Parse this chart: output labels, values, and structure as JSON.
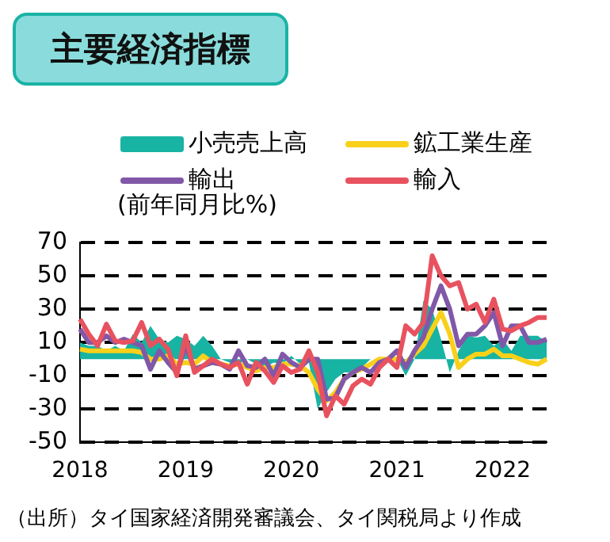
{
  "chart_data": {
    "type": "line",
    "title": "主要経済指標",
    "ylabel": "(前年同月比%)",
    "legend": "top",
    "grid": "y",
    "categories": [
      "2018",
      null,
      null,
      null,
      null,
      null,
      null,
      null,
      null,
      null,
      null,
      null,
      "2019",
      null,
      null,
      null,
      null,
      null,
      null,
      null,
      null,
      null,
      null,
      null,
      "2020",
      null,
      null,
      null,
      null,
      null,
      null,
      null,
      null,
      null,
      null,
      null,
      "2021",
      null,
      null,
      null,
      null,
      null,
      null,
      null,
      null,
      null,
      null,
      null,
      "2022",
      null,
      null,
      null,
      null,
      null
    ],
    "ylim": [
      -50,
      70
    ],
    "yticks": [
      -50,
      -30,
      -10,
      10,
      30,
      50,
      70
    ],
    "series": [
      {
        "name": "小売売上高",
        "type": "area",
        "color": "#17b3a3",
        "values": [
          10,
          8,
          8,
          5,
          8,
          5,
          15,
          10,
          20,
          12,
          10,
          14,
          12,
          8,
          14,
          8,
          0,
          -2,
          -3,
          0,
          -3,
          -5,
          -2,
          -3,
          2,
          -3,
          -2,
          -30,
          -20,
          -12,
          -8,
          -8,
          -5,
          0,
          0,
          0,
          0,
          -10,
          0,
          35,
          30,
          12,
          -8,
          5,
          14,
          13,
          14,
          8,
          12,
          5,
          14,
          14,
          14,
          10
        ]
      },
      {
        "name": "鉱工業生産",
        "type": "line",
        "color": "#f9d01a",
        "values": [
          6,
          5,
          5,
          5,
          5,
          5,
          5,
          4,
          0,
          0,
          2,
          -3,
          -2,
          -3,
          2,
          -2,
          -3,
          -4,
          -3,
          -5,
          -7,
          -5,
          -5,
          -3,
          -3,
          -4,
          -8,
          -18,
          -25,
          -20,
          -12,
          -8,
          -6,
          -3,
          0,
          0,
          0,
          -2,
          3,
          8,
          18,
          28,
          15,
          -5,
          0,
          3,
          3,
          6,
          2,
          2,
          0,
          -2,
          -3,
          0
        ]
      },
      {
        "name": "輸出",
        "type": "line",
        "color": "#8158a8",
        "values": [
          18,
          10,
          10,
          14,
          10,
          12,
          10,
          8,
          -6,
          5,
          -2,
          -8,
          8,
          -6,
          -4,
          -2,
          -3,
          -6,
          5,
          -4,
          -5,
          0,
          -10,
          3,
          -2,
          -5,
          0,
          0,
          -24,
          -23,
          -12,
          -8,
          -5,
          -8,
          -2,
          0,
          5,
          -5,
          5,
          13,
          30,
          44,
          30,
          8,
          15,
          15,
          20,
          28,
          8,
          20,
          20,
          10,
          10,
          12
        ]
      },
      {
        "name": "輸入",
        "type": "line",
        "color": "#e8525f",
        "values": [
          24,
          15,
          8,
          21,
          11,
          10,
          11,
          22,
          8,
          12,
          6,
          -10,
          14,
          -8,
          -4,
          0,
          -3,
          -5,
          -2,
          -15,
          -2,
          -7,
          -14,
          -4,
          -8,
          -6,
          5,
          -8,
          -34,
          -22,
          -27,
          -16,
          -12,
          -15,
          -5,
          0,
          -5,
          20,
          15,
          22,
          62,
          50,
          44,
          46,
          30,
          33,
          22,
          36,
          18,
          17,
          20,
          22,
          25,
          25
        ]
      }
    ],
    "annotations": [
      "（出所）タイ国家経済開発審議会、タイ関税局より作成"
    ]
  }
}
